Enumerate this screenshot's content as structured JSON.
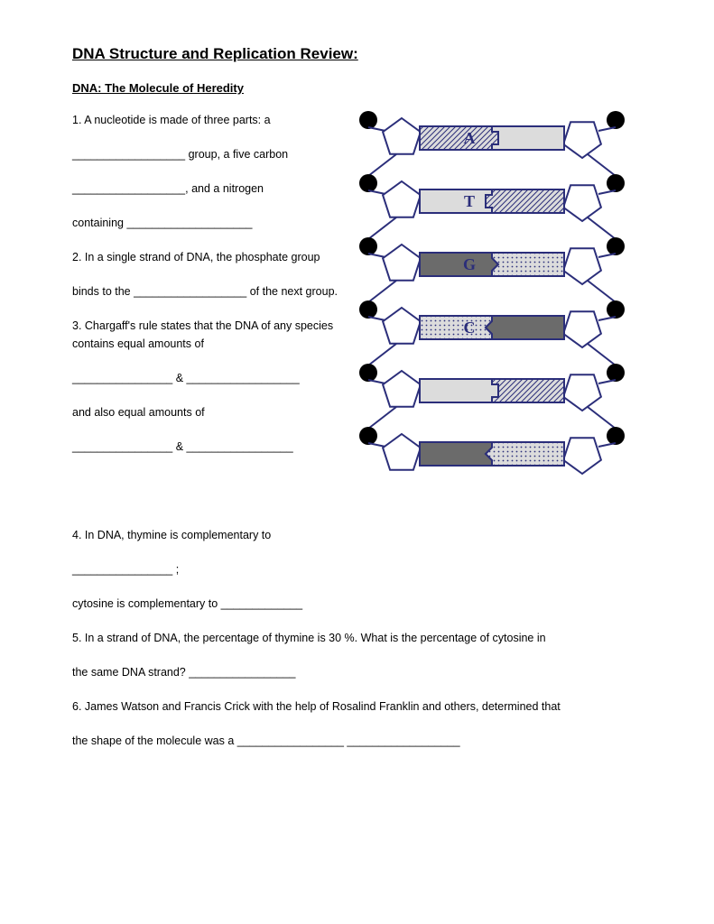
{
  "title": "DNA Structure and Replication Review:",
  "subtitle": "DNA: The Molecule of Heredity",
  "q1a": "1. A nucleotide is made of three parts: a",
  "q1b": "__________________ group, a five carbon",
  "q1c": "__________________, and a nitrogen",
  "q1d": "containing ____________________",
  "q2a": "2. In a single strand of DNA, the phosphate group",
  "q2b": " binds to the __________________ of the next group.",
  "q3a": "3. Chargaff's rule states that the DNA of any species contains equal amounts of",
  "q3b": "________________ & __________________",
  "q3c": "and also equal amounts of",
  "q3d": "________________ &  _________________",
  "q4a": "4. In DNA, thymine is complementary to",
  "q4b": "________________ ;",
  "q4c": "cytosine is complementary to _____________",
  "q5a": "5. In a strand of DNA, the percentage of thymine is 30 %. What is the percentage of cytosine in",
  "q5b": "the same DNA strand? _________________",
  "q6a": "6. James Watson and Francis Crick with the help of Rosalind Franklin and others, determined that",
  "q6b": "the shape of the molecule was a _________________ __________________",
  "dna": {
    "stroke": "#2b2e7a",
    "stroke_width": 2,
    "phosphate_fill": "#000000",
    "sugar_fill": "#ffffff",
    "rows": [
      {
        "left_label": "A",
        "left_fill": "hatch",
        "right_fill": "plain",
        "notch": "tab-out"
      },
      {
        "left_label": "T",
        "left_fill": "plain",
        "right_fill": "hatch",
        "notch": "tab-in"
      },
      {
        "left_label": "G",
        "left_fill": "dark",
        "right_fill": "dots",
        "notch": "arrow-out"
      },
      {
        "left_label": "C",
        "left_fill": "dots",
        "right_fill": "dark",
        "notch": "arrow-in"
      },
      {
        "left_label": "",
        "left_fill": "plain",
        "right_fill": "hatch",
        "notch": "tab-out"
      },
      {
        "left_label": "",
        "left_fill": "dark",
        "right_fill": "dots",
        "notch": "arrow-in"
      }
    ],
    "fills": {
      "plain": "#dcdcdc",
      "hatch": "url(#hatch)",
      "dark": "#6b6b6b",
      "dots": "url(#dots)"
    },
    "label_color": "#2b2e7a",
    "label_font_size": 18
  }
}
